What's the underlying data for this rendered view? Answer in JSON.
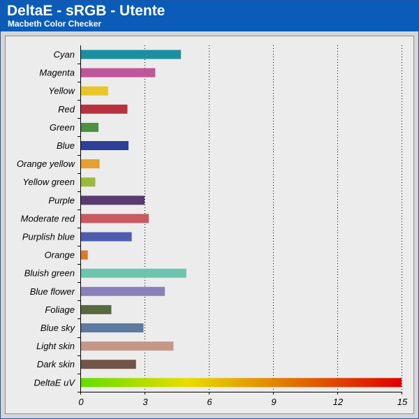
{
  "header": {
    "title": "DeltaE - sRGB - Utente",
    "subtitle": "Macbeth Color Checker"
  },
  "chart_data": {
    "type": "bar",
    "orientation": "horizontal",
    "title": "DeltaE - sRGB - Utente",
    "subtitle": "Macbeth Color Checker",
    "xlim": [
      0,
      15
    ],
    "xticks": [
      0,
      3,
      6,
      9,
      12,
      15
    ],
    "grid": "vertical dotted",
    "categories": [
      "Cyan",
      "Magenta",
      "Yellow",
      "Red",
      "Green",
      "Blue",
      "Orange yellow",
      "Yellow green",
      "Purple",
      "Moderate red",
      "Purplish blue",
      "Orange",
      "Bluish green",
      "Blue flower",
      "Foliage",
      "Blue sky",
      "Light skin",
      "Dark skin",
      "DeltaE uV"
    ],
    "values": [
      4.7,
      3.5,
      1.3,
      2.2,
      0.85,
      2.25,
      0.9,
      0.7,
      3.0,
      3.2,
      2.4,
      0.35,
      4.95,
      3.95,
      1.45,
      2.95,
      4.35,
      2.6,
      15
    ],
    "colors": [
      "#1b8fa0",
      "#c0569a",
      "#e8c62a",
      "#b83240",
      "#4a9140",
      "#2d3f96",
      "#e4a030",
      "#99bb3a",
      "#5a3a70",
      "#c85a62",
      "#4f5cae",
      "#dc7a28",
      "#6ec4ac",
      "#8a80bc",
      "#566a40",
      "#5e7aa0",
      "#c49888",
      "#72544a",
      "gradient"
    ],
    "gradient_stops": [
      "#66dd00",
      "#e8dd00",
      "#e07000",
      "#e00000"
    ]
  }
}
